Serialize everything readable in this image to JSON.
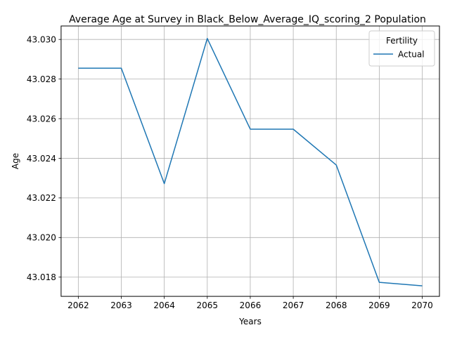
{
  "chart_data": {
    "type": "line",
    "title": "Average Age at Survey in Black_Below_Average_IQ_scoring_2 Population",
    "xlabel": "Years",
    "ylabel": "Age",
    "x": [
      2062,
      2063,
      2064,
      2065,
      2066,
      2067,
      2068,
      2069,
      2070
    ],
    "x_tick_labels": [
      "2062",
      "2063",
      "2064",
      "2065",
      "2066",
      "2067",
      "2068",
      "2069",
      "2070"
    ],
    "y_ticks": [
      43.018,
      43.02,
      43.022,
      43.024,
      43.026,
      43.028,
      43.03
    ],
    "y_tick_labels": [
      "43.018",
      "43.020",
      "43.022",
      "43.024",
      "43.026",
      "43.028",
      "43.030"
    ],
    "xlim": [
      2061.6,
      2070.4
    ],
    "ylim": [
      43.01703,
      43.03068
    ],
    "grid": true,
    "legend": {
      "title": "Fertility",
      "position": "top-right"
    },
    "series": [
      {
        "name": "Actual",
        "color": "#1f77b4",
        "values": [
          43.02855,
          43.02855,
          43.02272,
          43.03005,
          43.02547,
          43.02547,
          43.02366,
          43.01774,
          43.01756
        ]
      }
    ]
  }
}
